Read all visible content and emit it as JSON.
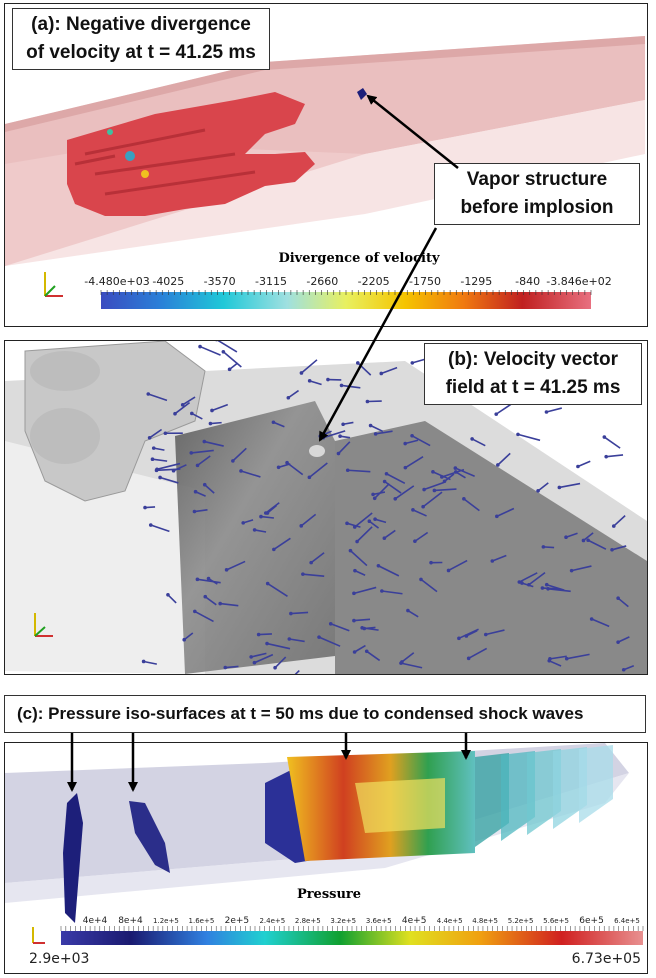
{
  "panel_a": {
    "caption_line1": "(a): Negative divergence",
    "caption_line2": "of velocity at t = 41.25 ms",
    "colorbar_title": "Divergence of velocity",
    "colorbar_ticks": [
      "-4.480e+03",
      "-4025",
      "-3570",
      "-3115",
      "-2660",
      "-2205",
      "-1750",
      "-1295",
      "-840",
      "-3.846e+02"
    ]
  },
  "vapor_callout": {
    "line1": "Vapor structure",
    "line2": "before implosion"
  },
  "panel_b": {
    "caption_line1": "(b): Velocity vector",
    "caption_line2": "field at t = 41.25 ms"
  },
  "panel_c": {
    "caption": "(c): Pressure iso-surfaces at t = 50 ms due to condensed shock waves",
    "colorbar_title": "Pressure",
    "colorbar_ticks": [
      "4e+4",
      "8e+4",
      "1.2e+5",
      "1.6e+5",
      "2e+5",
      "2.4e+5",
      "2.8e+5",
      "3.2e+5",
      "3.6e+5",
      "4e+5",
      "4.4e+5",
      "4.8e+5",
      "5.2e+5",
      "5.6e+5",
      "6e+5",
      "6.4e+5"
    ],
    "colorbar_min": "2.9e+03",
    "colorbar_max": "6.73e+05"
  },
  "colors": {
    "divergence_red": "#d9454c",
    "channel_pink": "#e8b8b8",
    "vector_blue": "#3a3f9a",
    "iso_navy": "#1d1f7a",
    "channel_grey": "#d6d6d6"
  }
}
